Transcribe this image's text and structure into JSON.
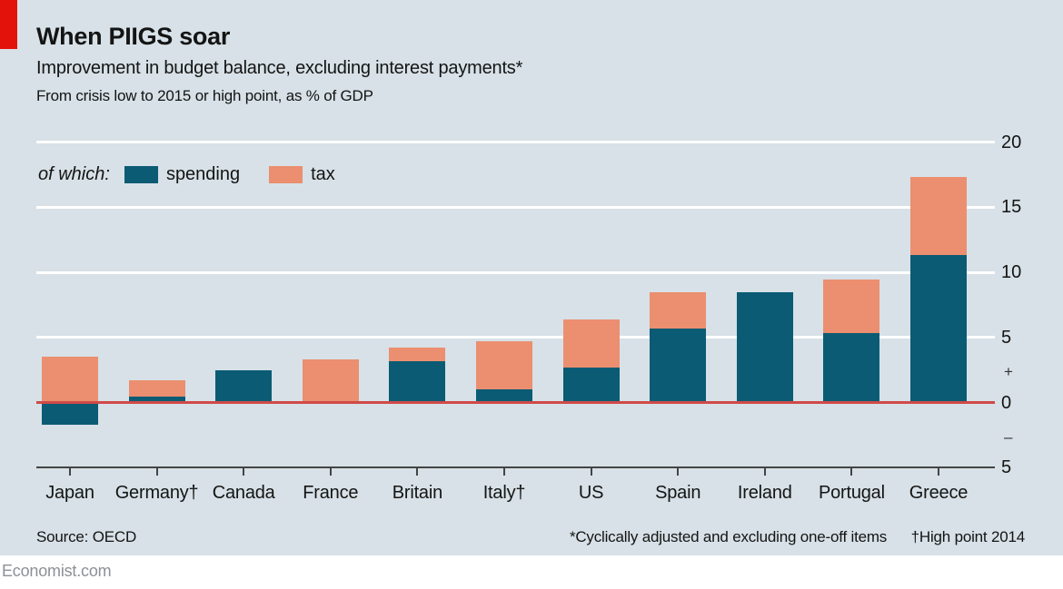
{
  "header": {
    "title": "When PIIGS soar",
    "subtitle": "Improvement in budget balance, excluding interest payments*",
    "note": "From crisis low to 2015 or high point, as % of GDP"
  },
  "legend": {
    "prefix": "of which:",
    "items": [
      {
        "label": "spending",
        "color": "#0B5B74"
      },
      {
        "label": "tax",
        "color": "#EB8F70"
      }
    ]
  },
  "chart_data": {
    "type": "bar",
    "stacked": true,
    "title": "When PIIGS soar",
    "subtitle": "Improvement in budget balance, excluding interest payments*",
    "unit_note": "From crisis low to 2015 or high point, as % of GDP",
    "categories": [
      "Japan",
      "Germany†",
      "Canada",
      "France",
      "Britain",
      "Italy†",
      "US",
      "Spain",
      "Ireland",
      "Portugal",
      "Greece"
    ],
    "series": [
      {
        "name": "spending",
        "color": "#0B5B74",
        "values": [
          -1.7,
          0.45,
          2.45,
          0,
          3.15,
          1.0,
          2.65,
          5.7,
          8.5,
          5.35,
          11.3
        ]
      },
      {
        "name": "tax",
        "color": "#EB8F70",
        "values": [
          3.5,
          1.25,
          0,
          3.3,
          1.05,
          3.7,
          3.75,
          2.8,
          0,
          4.1,
          6.0
        ]
      }
    ],
    "ylim": [
      -5,
      20
    ],
    "grid": true,
    "legend_position": "top-left",
    "y_ticks": [
      {
        "label": "20",
        "value": 20,
        "line": "grid"
      },
      {
        "label": "15",
        "value": 15,
        "line": "grid"
      },
      {
        "label": "10",
        "value": 10,
        "line": "grid"
      },
      {
        "label": "5",
        "value": 5,
        "line": "grid"
      },
      {
        "label": "+",
        "value": 2.3,
        "line": "none"
      },
      {
        "label": "0",
        "value": 0,
        "line": "zero"
      },
      {
        "label": "–",
        "value": -2.7,
        "line": "none"
      },
      {
        "label": "5",
        "value": -5,
        "line": "axis"
      }
    ]
  },
  "colors": {
    "background": "#D7E1E7",
    "red_tab": "#E3120B",
    "zero_line": "#D04A48",
    "gridline": "#FFFFFF",
    "axis_line": "#444444",
    "text": "#141414",
    "spending": "#0B5B74",
    "tax": "#EB8F70"
  },
  "footer": {
    "source": "Source: OECD",
    "footnote_left": "*Cyclically adjusted and excluding one-off items",
    "footnote_right": "†High point 2014",
    "site": "Economist.com"
  }
}
